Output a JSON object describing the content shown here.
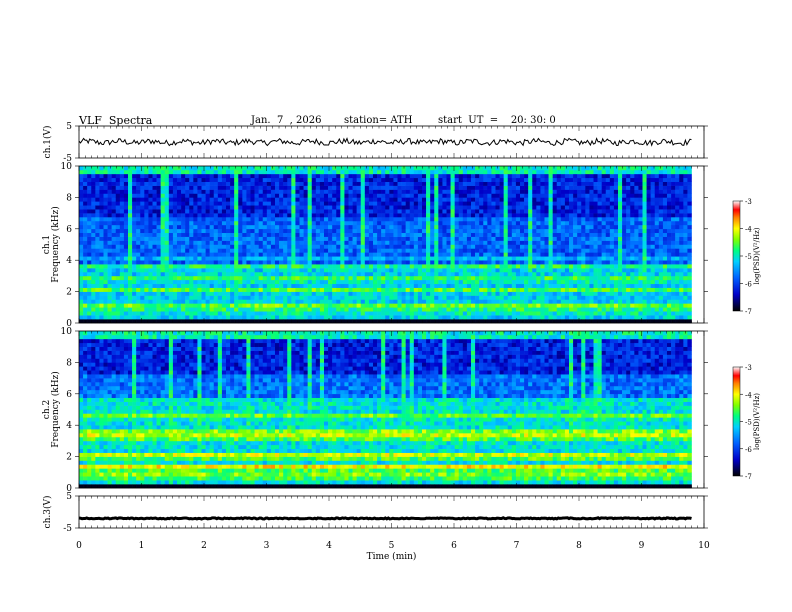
{
  "header": {
    "title": "VLF  Spectra",
    "date": "Jan.  7  , 2026",
    "station": "station= ATH",
    "start": "start  UT  =    20: 30: 0"
  },
  "chart_data": [
    {
      "type": "line",
      "panel": "ch1-waveform",
      "ylabel": "ch.1(V)",
      "yticks": [
        "5",
        "-5"
      ],
      "ylim": [
        -5,
        5
      ],
      "xlim": [
        0,
        10
      ],
      "data_extent_min": 9.8,
      "series_desc_level": 0.0,
      "amplitude": 0.9
    },
    {
      "type": "heatmap",
      "panel": "ch1-spectrogram",
      "ylabel_line1": "ch.1",
      "ylabel_line2": "Frequency  (kHz)",
      "yticks": [
        "0",
        "2",
        "4",
        "6",
        "8",
        "10"
      ],
      "ylim": [
        0,
        10
      ],
      "xlim": [
        0,
        10
      ],
      "data_extent_min": 9.8,
      "colorbar": {
        "label": "log(PSD)(V²/Hz)",
        "ticks": [
          "-3",
          "-4",
          "-5",
          "-6",
          "-7"
        ],
        "range": [
          -7,
          -3
        ]
      }
    },
    {
      "type": "heatmap",
      "panel": "ch2-spectrogram",
      "ylabel_line1": "ch.2",
      "ylabel_line2": "Frequency  (kHz)",
      "yticks": [
        "0",
        "2",
        "4",
        "6",
        "8",
        "10"
      ],
      "ylim": [
        0,
        10
      ],
      "xlim": [
        0,
        10
      ],
      "data_extent_min": 9.8,
      "colorbar": {
        "label": "log(PSD)(V²/Hz)",
        "ticks": [
          "-3",
          "-4",
          "-5",
          "-6",
          "-7"
        ],
        "range": [
          -7,
          -3
        ]
      }
    },
    {
      "type": "line",
      "panel": "ch3-waveform",
      "ylabel": "ch.3(V)",
      "yticks": [
        "5",
        "-5"
      ],
      "ylim": [
        -5,
        5
      ],
      "xlim": [
        0,
        10
      ],
      "data_extent_min": 9.8,
      "series_desc_level": -2.0,
      "amplitude": 0.15,
      "xlabel": "Time  (min)",
      "xticks": [
        "0",
        "1",
        "2",
        "3",
        "4",
        "5",
        "6",
        "7",
        "8",
        "9",
        "10"
      ]
    }
  ]
}
